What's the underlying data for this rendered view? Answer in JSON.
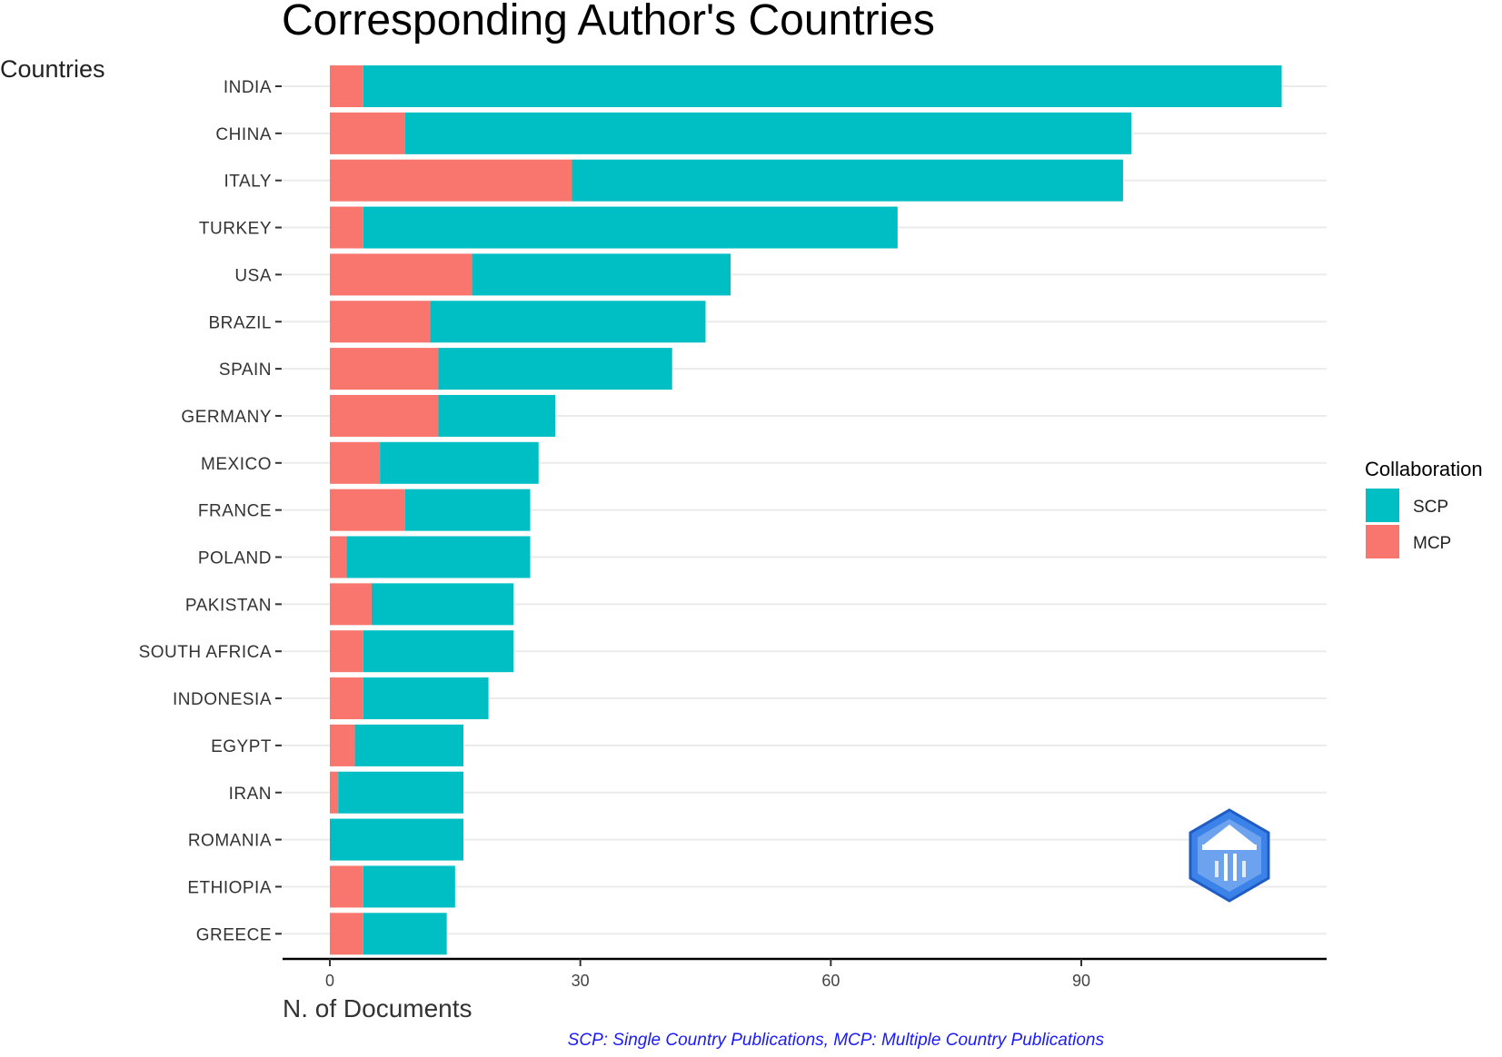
{
  "chart_data": {
    "type": "bar",
    "orientation": "horizontal",
    "stacked": true,
    "title": "Corresponding Author's Countries",
    "ylabel": "Countries",
    "xlabel": "N. of Documents",
    "caption": "SCP: Single Country Publications, MCP: Multiple Country Publications",
    "categories": [
      "INDIA",
      "CHINA",
      "ITALY",
      "TURKEY",
      "USA",
      "BRAZIL",
      "SPAIN",
      "GERMANY",
      "MEXICO",
      "FRANCE",
      "POLAND",
      "PAKISTAN",
      "SOUTH AFRICA",
      "INDONESIA",
      "EGYPT",
      "IRAN",
      "ROMANIA",
      "ETHIOPIA",
      "GREECE"
    ],
    "series": [
      {
        "name": "MCP",
        "color": "#F8766D",
        "values": [
          4,
          9,
          29,
          4,
          17,
          12,
          13,
          13,
          6,
          9,
          2,
          5,
          4,
          4,
          3,
          1,
          0,
          4,
          4
        ]
      },
      {
        "name": "SCP",
        "color": "#00BFC4",
        "values": [
          110,
          87,
          66,
          64,
          31,
          33,
          28,
          14,
          19,
          15,
          22,
          17,
          18,
          15,
          13,
          15,
          16,
          11,
          10
        ]
      }
    ],
    "xlim": [
      -5.6,
      119
    ],
    "xticks": [
      0,
      30,
      60,
      90
    ],
    "legend": {
      "title": "Collaboration",
      "position": "right",
      "entries": [
        {
          "label": "SCP",
          "color": "#00BFC4"
        },
        {
          "label": "MCP",
          "color": "#F8766D"
        }
      ]
    },
    "grid": "horizontal-major",
    "logo": "hexagon-logo-icon"
  }
}
